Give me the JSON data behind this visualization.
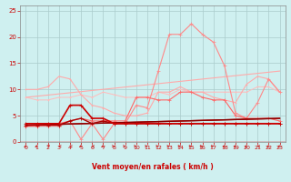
{
  "xlabel": "Vent moyen/en rafales ( km/h )",
  "xlim": [
    -0.5,
    23.5
  ],
  "ylim": [
    0,
    26
  ],
  "yticks": [
    0,
    5,
    10,
    15,
    20,
    25
  ],
  "xticks": [
    0,
    1,
    2,
    3,
    4,
    5,
    6,
    7,
    8,
    9,
    10,
    11,
    12,
    13,
    14,
    15,
    16,
    17,
    18,
    19,
    20,
    21,
    22,
    23
  ],
  "bg_color": "#cff0f0",
  "grid_color": "#aacccc",
  "line_trend1_x": [
    0,
    23
  ],
  "line_trend1_y": [
    3.2,
    4.5
  ],
  "line_trend1_color": "#cc0000",
  "line_trend1_lw": 1.0,
  "line_trend2_x": [
    0,
    23
  ],
  "line_trend2_y": [
    3.2,
    4.5
  ],
  "line_trend2_color": "#880000",
  "line_trend2_lw": 1.0,
  "line_trend3_x": [
    0,
    23
  ],
  "line_trend3_y": [
    8.5,
    13.5
  ],
  "line_trend3_color": "#ffaaaa",
  "line_trend3_lw": 0.8,
  "line_flat_x": [
    0,
    1,
    2,
    3,
    4,
    5,
    6,
    7,
    8,
    9,
    10,
    11,
    12,
    13,
    14,
    15,
    16,
    17,
    18,
    19,
    20,
    21,
    22,
    23
  ],
  "line_flat_y": [
    8.5,
    8.0,
    8.0,
    8.5,
    8.5,
    9.0,
    8.5,
    9.5,
    9.0,
    8.5,
    8.5,
    8.5,
    9.5,
    9.0,
    10.0,
    9.5,
    9.5,
    9.5,
    9.5,
    9.5,
    9.5,
    10.5,
    10.5,
    9.5
  ],
  "line_flat_color": "#ffbbbb",
  "line_flat_lw": 0.7,
  "line_wavy_x": [
    0,
    1,
    2,
    3,
    4,
    5,
    6,
    7,
    8,
    9,
    10,
    11,
    12,
    13,
    14,
    15,
    16,
    17,
    18,
    19,
    20,
    21,
    22,
    23
  ],
  "line_wavy_y": [
    10.0,
    10.0,
    10.5,
    12.5,
    12.0,
    9.0,
    7.0,
    6.5,
    5.5,
    5.0,
    5.0,
    5.5,
    9.5,
    9.5,
    10.5,
    9.5,
    9.5,
    8.5,
    8.0,
    7.5,
    11.0,
    12.5,
    12.0,
    9.5
  ],
  "line_wavy_color": "#ffaaaa",
  "line_wavy_lw": 0.8,
  "line_medium_x": [
    0,
    1,
    2,
    3,
    4,
    5,
    6,
    7,
    8,
    9,
    10,
    11,
    12,
    13,
    14,
    15,
    16,
    17,
    18,
    19,
    20,
    21,
    22,
    23
  ],
  "line_medium_y": [
    3.0,
    3.0,
    3.5,
    3.5,
    4.0,
    4.5,
    4.0,
    4.0,
    4.0,
    4.0,
    8.5,
    8.5,
    8.0,
    8.0,
    9.5,
    9.5,
    8.5,
    8.0,
    8.0,
    5.0,
    4.5,
    4.5,
    4.5,
    4.0
  ],
  "line_medium_color": "#ff6666",
  "line_medium_lw": 0.8,
  "line_big_x": [
    0,
    1,
    2,
    3,
    4,
    5,
    6,
    7,
    8,
    9,
    10,
    11,
    12,
    13,
    14,
    15,
    16,
    17,
    18,
    19,
    20,
    21,
    22,
    23
  ],
  "line_big_y": [
    3.0,
    3.0,
    3.0,
    3.0,
    4.0,
    0.5,
    3.5,
    0.5,
    3.5,
    3.5,
    7.0,
    6.5,
    13.5,
    20.5,
    20.5,
    22.5,
    20.5,
    19.0,
    14.5,
    5.5,
    4.5,
    7.5,
    12.0,
    9.5
  ],
  "line_big_color": "#ff8888",
  "line_big_lw": 0.8,
  "line_dark1_x": [
    0,
    1,
    2,
    3,
    4,
    5,
    6,
    7,
    8,
    9,
    10,
    11,
    12,
    13,
    14,
    15,
    16,
    17,
    18,
    19,
    20,
    21,
    22,
    23
  ],
  "line_dark1_y": [
    3.5,
    3.5,
    3.5,
    3.5,
    7.0,
    7.0,
    4.5,
    4.5,
    3.5,
    3.5,
    3.5,
    3.5,
    3.5,
    3.5,
    3.5,
    3.5,
    3.5,
    3.5,
    3.5,
    3.5,
    3.5,
    3.5,
    3.5,
    3.5
  ],
  "line_dark1_color": "#cc0000",
  "line_dark1_lw": 1.2,
  "line_dark2_x": [
    0,
    1,
    2,
    3,
    4,
    5,
    6,
    7,
    8,
    9,
    10,
    11,
    12,
    13,
    14,
    15,
    16,
    17,
    18,
    19,
    20,
    21,
    22,
    23
  ],
  "line_dark2_y": [
    3.2,
    3.2,
    3.2,
    3.2,
    4.0,
    4.5,
    3.5,
    4.0,
    3.5,
    3.5,
    3.5,
    3.5,
    3.5,
    3.5,
    3.5,
    3.5,
    3.5,
    3.5,
    3.5,
    3.5,
    3.5,
    3.5,
    3.5,
    3.5
  ],
  "line_dark2_color": "#aa0000",
  "line_dark2_lw": 1.0,
  "wind_x": [
    0,
    1,
    2,
    3,
    4,
    5,
    6,
    7,
    8,
    9,
    10,
    11,
    12,
    13,
    14,
    15,
    16,
    17,
    18,
    19,
    20,
    21,
    22,
    23
  ],
  "wind_dirs": [
    225,
    225,
    45,
    270,
    270,
    225,
    270,
    225,
    90,
    90,
    90,
    90,
    90,
    90,
    90,
    90,
    90,
    90,
    225,
    225,
    225,
    270,
    225,
    225
  ],
  "arrow_color": "#cc2222",
  "tick_color": "#cc0000",
  "label_color": "#cc0000"
}
